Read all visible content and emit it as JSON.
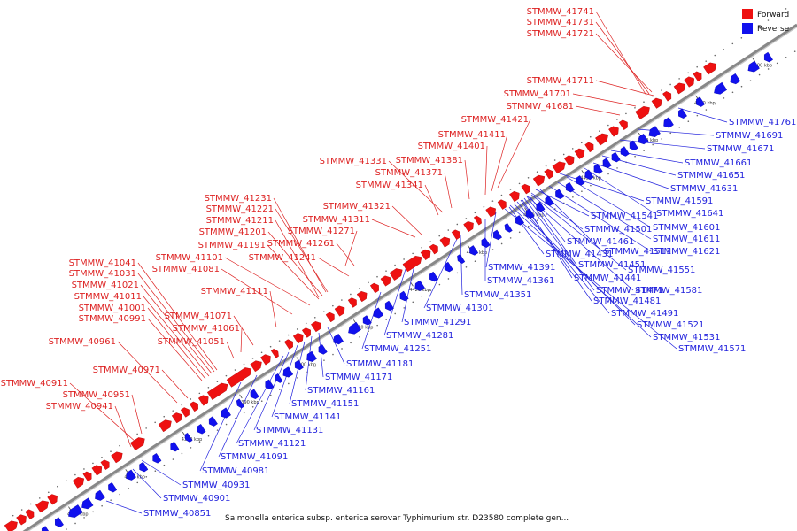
{
  "caption": "Salmonella enterica subsp. enterica serovar Typhimurium str. D23580 complete gen...",
  "legend": [
    {
      "label": "Forward",
      "color": "#ee1111"
    },
    {
      "label": "Reverse",
      "color": "#1111ee"
    }
  ],
  "colors": {
    "forward": "#ee1111",
    "reverse": "#1111ee",
    "backbone": "#888888",
    "leader_forward": "#dd2222",
    "leader_reverse": "#2222dd"
  },
  "tick_labels": [
    "4360 kbp",
    "4370 kbp",
    "4380 kbp",
    "4390 kbp",
    "4400 kbp",
    "4410 kbp",
    "4420 kbp",
    "4430 kbp",
    "4440 kbp",
    "4450 kbp",
    "4460 kbp",
    "4470 kbp",
    "4480 kbp"
  ],
  "forward_genes": [
    "STMMW_41741",
    "STMMW_41731",
    "STMMW_41721",
    "STMMW_41711",
    "STMMW_41701",
    "STMMW_41681",
    "STMMW_41421",
    "STMMW_41411",
    "STMMW_41401",
    "STMMW_41381",
    "STMMW_41371",
    "STMMW_41331",
    "STMMW_41341",
    "STMMW_41321",
    "STMMW_41311",
    "STMMW_41271",
    "STMMW_41261",
    "STMMW_41241",
    "STMMW_41231",
    "STMMW_41221",
    "STMMW_41211",
    "STMMW_41201",
    "STMMW_41191",
    "STMMW_41101",
    "STMMW_41081",
    "STMMW_41111",
    "STMMW_41071",
    "STMMW_41061",
    "STMMW_41051",
    "STMMW_41041",
    "STMMW_41031",
    "STMMW_41021",
    "STMMW_41011",
    "STMMW_41001",
    "STMMW_40991",
    "STMMW_40961",
    "STMMW_40971",
    "STMMW_40911",
    "STMMW_40951",
    "STMMW_40941"
  ],
  "reverse_genes": [
    "STMMW_41761",
    "STMMW_41691",
    "STMMW_41671",
    "STMMW_41661",
    "STMMW_41651",
    "STMMW_41631",
    "STMMW_41591",
    "STMMW_41641",
    "STMMW_41541",
    "STMMW_41601",
    "STMMW_41501",
    "STMMW_41611",
    "STMMW_41461",
    "STMMW_41621",
    "STMMW_41511",
    "STMMW_41431",
    "STMMW_41451",
    "STMMW_41551",
    "STMMW_41391",
    "STMMW_41441",
    "STMMW_41361",
    "STMMW_41581",
    "STMMW_41471",
    "STMMW_41351",
    "STMMW_41481",
    "STMMW_41301",
    "STMMW_41491",
    "STMMW_41291",
    "STMMW_41521",
    "STMMW_41281",
    "STMMW_41531",
    "STMMW_41571",
    "STMMW_41251",
    "STMMW_41181",
    "STMMW_41171",
    "STMMW_41161",
    "STMMW_41151",
    "STMMW_41141",
    "STMMW_41131",
    "STMMW_41121",
    "STMMW_41091",
    "STMMW_40981",
    "STMMW_40931",
    "STMMW_40901",
    "STMMW_40851"
  ]
}
